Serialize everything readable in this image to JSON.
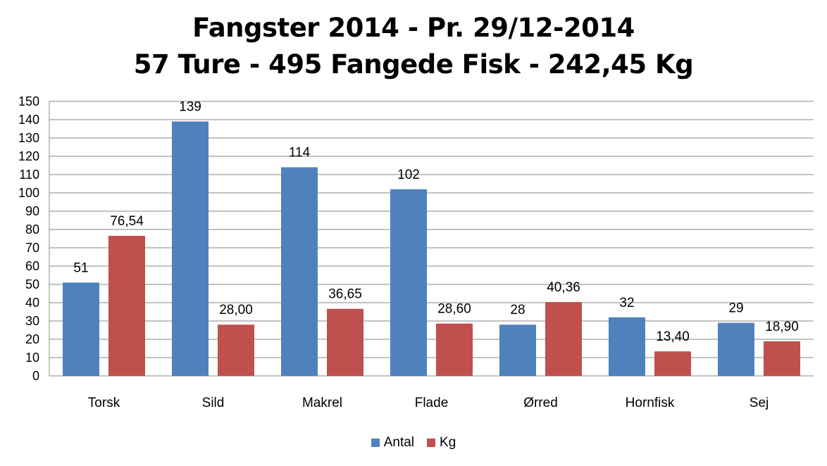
{
  "chart_data": {
    "type": "bar",
    "title_line1": "Fangster 2014 - Pr. 29/12-2014",
    "title_line2": "57 Ture - 495 Fangede Fisk - 242,45 Kg",
    "categories": [
      "Torsk",
      "Sild",
      "Makrel",
      "Flade",
      "Ørred",
      "Hornfisk",
      "Sej"
    ],
    "series": [
      {
        "name": "Antal",
        "color": "#4f81bd",
        "values": [
          51,
          139,
          114,
          102,
          28,
          32,
          29
        ],
        "labels": [
          "51",
          "139",
          "114",
          "102",
          "28",
          "32",
          "29"
        ]
      },
      {
        "name": "Kg",
        "color": "#c0504d",
        "values": [
          76.54,
          28.0,
          36.65,
          28.6,
          40.36,
          13.4,
          18.9
        ],
        "labels": [
          "76,54",
          "28,00",
          "36,65",
          "28,60",
          "40,36",
          "13,40",
          "18,90"
        ]
      }
    ],
    "ylim": [
      0,
      150
    ],
    "yticks": [
      0,
      10,
      20,
      30,
      40,
      50,
      60,
      70,
      80,
      90,
      100,
      110,
      120,
      130,
      140,
      150
    ],
    "grid": true,
    "legend_position": "bottom"
  }
}
